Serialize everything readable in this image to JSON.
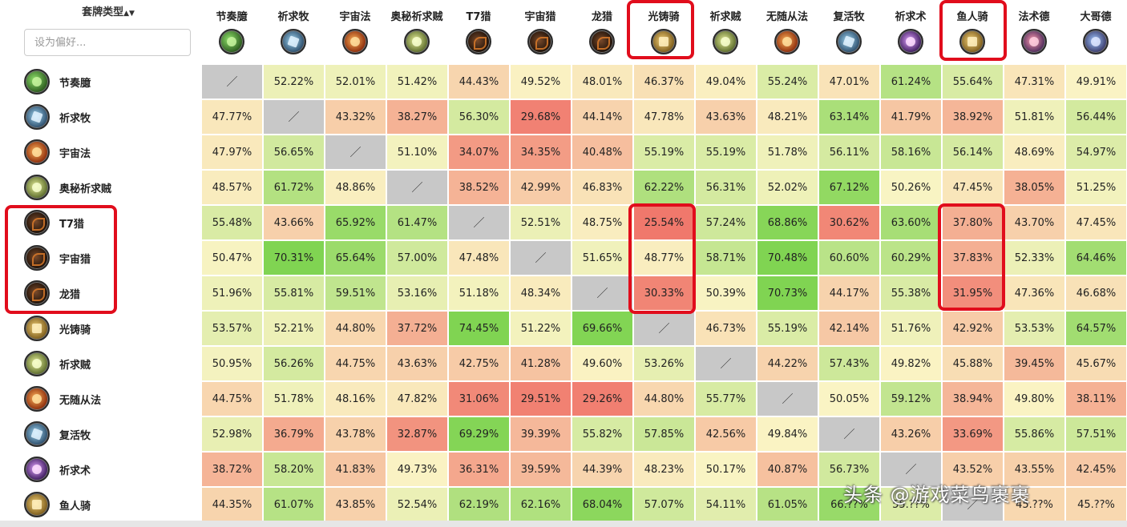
{
  "sort_header": {
    "label": "套牌类型",
    "icon": "sort-arrows-icon",
    "arrows": "▲▼"
  },
  "search": {
    "placeholder": "设为偏好..."
  },
  "columns": [
    {
      "name": "节奏臆",
      "icon": "rogue-druid"
    },
    {
      "name": "祈求牧",
      "icon": "priest"
    },
    {
      "name": "宇宙法",
      "icon": "mage"
    },
    {
      "name": "奥秘祈求贼",
      "icon": "rogue"
    },
    {
      "name": "T7猎",
      "icon": "hunter"
    },
    {
      "name": "宇宙猎",
      "icon": "hunter"
    },
    {
      "name": "龙猎",
      "icon": "hunter"
    },
    {
      "name": "光铸骑",
      "icon": "paladin"
    },
    {
      "name": "祈求贼",
      "icon": "rogue"
    },
    {
      "name": "无随从法",
      "icon": "mage"
    },
    {
      "name": "复活牧",
      "icon": "priest"
    },
    {
      "name": "祈求术",
      "icon": "warlock"
    },
    {
      "name": "鱼人骑",
      "icon": "paladin"
    },
    {
      "name": "法术德",
      "icon": "shaman"
    },
    {
      "name": "大哥德",
      "icon": "druid2"
    }
  ],
  "rows": [
    {
      "name": "节奏臆",
      "icon": "rogue-druid",
      "values": [
        "／",
        "52.22%",
        "52.01%",
        "51.42%",
        "44.43%",
        "49.52%",
        "48.01%",
        "46.37%",
        "49.04%",
        "55.24%",
        "47.01%",
        "61.24%",
        "55.64%",
        "47.31%",
        "49.91%"
      ]
    },
    {
      "name": "祈求牧",
      "icon": "priest",
      "values": [
        "47.77%",
        "／",
        "43.32%",
        "38.27%",
        "56.30%",
        "29.68%",
        "44.14%",
        "47.78%",
        "43.63%",
        "48.21%",
        "63.14%",
        "41.79%",
        "38.92%",
        "51.81%",
        "56.44%"
      ]
    },
    {
      "name": "宇宙法",
      "icon": "mage",
      "values": [
        "47.97%",
        "56.65%",
        "／",
        "51.10%",
        "34.07%",
        "34.35%",
        "40.48%",
        "55.19%",
        "55.19%",
        "51.78%",
        "56.11%",
        "58.16%",
        "56.14%",
        "48.69%",
        "54.97%"
      ]
    },
    {
      "name": "奥秘祈求贼",
      "icon": "rogue",
      "values": [
        "48.57%",
        "61.72%",
        "48.86%",
        "／",
        "38.52%",
        "42.99%",
        "46.83%",
        "62.22%",
        "56.31%",
        "52.02%",
        "67.12%",
        "50.26%",
        "47.45%",
        "38.05%",
        "51.25%"
      ]
    },
    {
      "name": "T7猎",
      "icon": "hunter",
      "values": [
        "55.48%",
        "43.66%",
        "65.92%",
        "61.47%",
        "／",
        "52.51%",
        "48.75%",
        "25.54%",
        "57.24%",
        "68.86%",
        "30.62%",
        "63.60%",
        "37.80%",
        "43.70%",
        "47.45%"
      ]
    },
    {
      "name": "宇宙猎",
      "icon": "hunter",
      "values": [
        "50.47%",
        "70.31%",
        "65.64%",
        "57.00%",
        "47.48%",
        "／",
        "51.65%",
        "48.77%",
        "58.71%",
        "70.48%",
        "60.60%",
        "60.29%",
        "37.83%",
        "52.33%",
        "64.46%"
      ]
    },
    {
      "name": "龙猎",
      "icon": "hunter",
      "values": [
        "51.96%",
        "55.81%",
        "59.51%",
        "53.16%",
        "51.18%",
        "48.34%",
        "／",
        "30.33%",
        "50.39%",
        "70.73%",
        "44.17%",
        "55.38%",
        "31.95%",
        "47.36%",
        "46.68%"
      ]
    },
    {
      "name": "光铸骑",
      "icon": "paladin",
      "values": [
        "53.57%",
        "52.21%",
        "44.80%",
        "37.72%",
        "74.45%",
        "51.22%",
        "69.66%",
        "／",
        "46.73%",
        "55.19%",
        "42.14%",
        "51.76%",
        "42.92%",
        "53.53%",
        "64.57%"
      ]
    },
    {
      "name": "祈求贼",
      "icon": "rogue",
      "values": [
        "50.95%",
        "56.26%",
        "44.75%",
        "43.63%",
        "42.75%",
        "41.28%",
        "49.60%",
        "53.26%",
        "／",
        "44.22%",
        "57.43%",
        "49.82%",
        "45.88%",
        "39.45%",
        "45.67%"
      ]
    },
    {
      "name": "无随从法",
      "icon": "mage",
      "values": [
        "44.75%",
        "51.78%",
        "48.16%",
        "47.82%",
        "31.06%",
        "29.51%",
        "29.26%",
        "44.80%",
        "55.77%",
        "／",
        "50.05%",
        "59.12%",
        "38.94%",
        "49.80%",
        "38.11%"
      ]
    },
    {
      "name": "复活牧",
      "icon": "priest",
      "values": [
        "52.98%",
        "36.79%",
        "43.78%",
        "32.87%",
        "69.29%",
        "39.39%",
        "55.82%",
        "57.85%",
        "42.56%",
        "49.84%",
        "／",
        "43.26%",
        "33.69%",
        "55.86%",
        "57.51%"
      ]
    },
    {
      "name": "祈求术",
      "icon": "warlock",
      "values": [
        "38.72%",
        "58.20%",
        "41.83%",
        "49.73%",
        "36.31%",
        "39.59%",
        "44.39%",
        "48.23%",
        "50.17%",
        "40.87%",
        "56.73%",
        "／",
        "43.52%",
        "43.55%",
        "42.45%"
      ]
    },
    {
      "name": "鱼人骑",
      "icon": "paladin",
      "values": [
        "44.35%",
        "61.07%",
        "43.85%",
        "52.54%",
        "62.19%",
        "62.16%",
        "68.04%",
        "57.07%",
        "54.11%",
        "61.05%",
        "66.??%",
        "55.??%",
        "／",
        "45.??%",
        "45.??%"
      ]
    }
  ],
  "colors": {
    "self_cell": "#c8c8c8",
    "annotation": "#e10d1c"
  },
  "watermark": "头条 @游戏菜鸟裹裹"
}
